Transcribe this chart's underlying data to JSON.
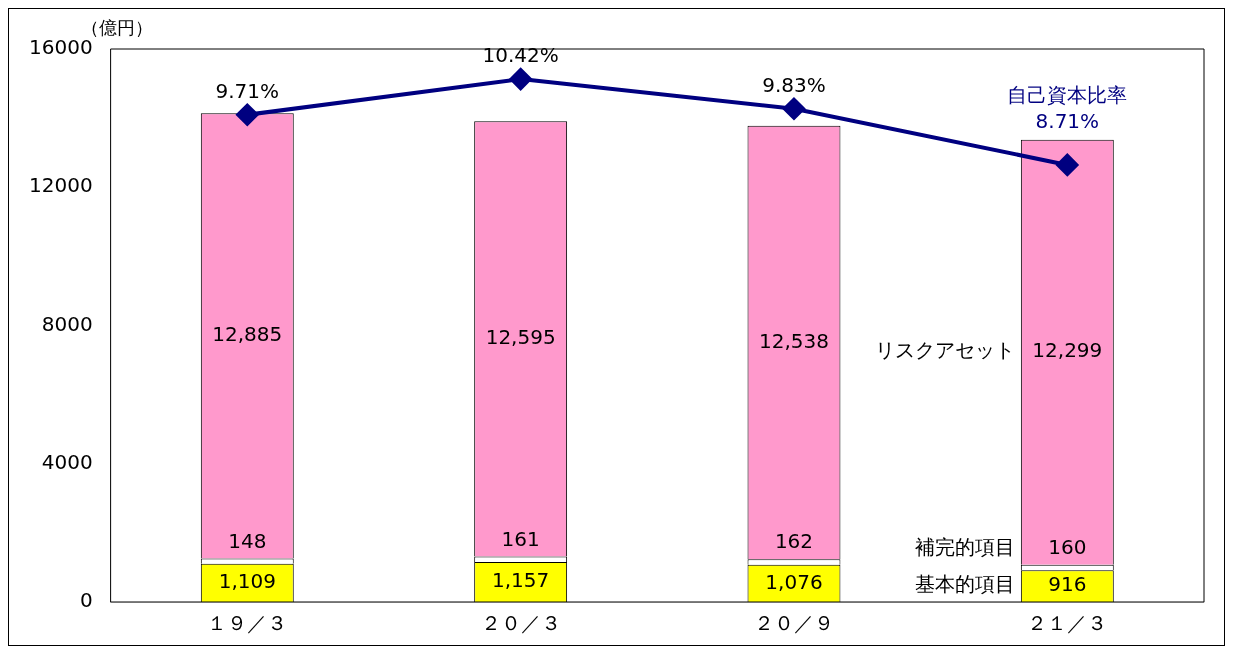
{
  "chart_data": {
    "type": "bar",
    "stacked": true,
    "ylabel": "（億円）",
    "categories": [
      "１９／３",
      "２０／３",
      "２０／９",
      "２１／３"
    ],
    "ylim": [
      0,
      16000
    ],
    "yticks": [
      0,
      4000,
      8000,
      12000,
      16000
    ],
    "y2lim": [
      0,
      11.02
    ],
    "grid": false,
    "legend": false,
    "marker": "diamond",
    "series": [
      {
        "name": "基本的項目",
        "color": "#ffff00",
        "values": [
          1109,
          1157,
          1076,
          916
        ],
        "value_labels": [
          "1,109",
          "1,157",
          "1,076",
          "916"
        ]
      },
      {
        "name": "補完的項目",
        "color": "#ffffff",
        "values": [
          148,
          161,
          162,
          160
        ],
        "value_labels": [
          "148",
          "161",
          "162",
          "160"
        ]
      },
      {
        "name": "リスクアセット",
        "color": "#ff99cc",
        "values": [
          12885,
          12595,
          12538,
          12299
        ],
        "value_labels": [
          "12,885",
          "12,595",
          "12,538",
          "12,299"
        ]
      },
      {
        "name": "自己資本比率",
        "type": "line",
        "axis": "y2",
        "color": "#000080",
        "values": [
          9.71,
          10.42,
          9.83,
          8.71
        ],
        "value_labels": [
          "9.71%",
          "10.42%",
          "9.83%",
          "8.71%"
        ]
      }
    ]
  }
}
